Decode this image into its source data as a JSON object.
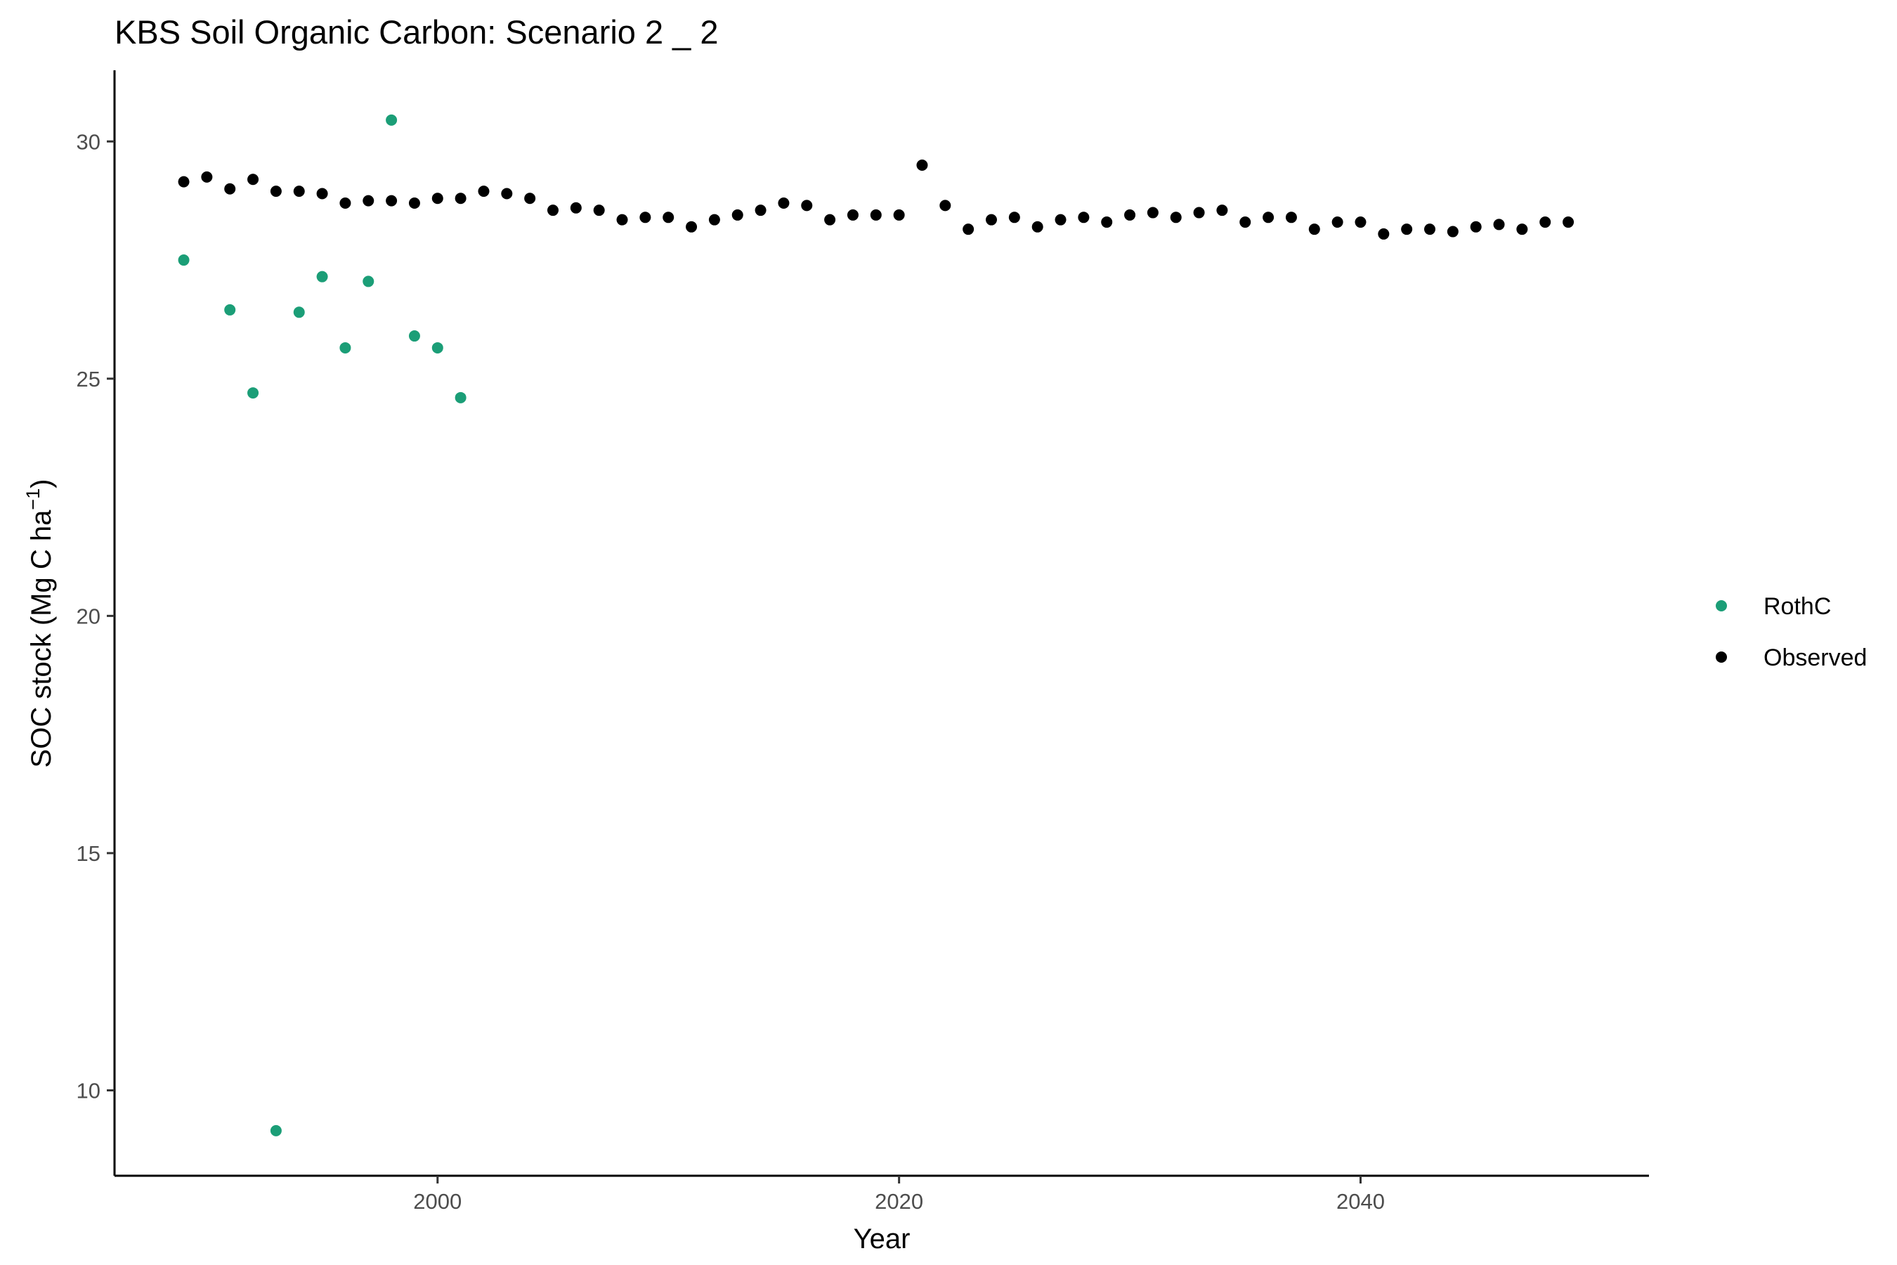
{
  "chart_data": {
    "type": "scatter",
    "title": "KBS Soil Organic Carbon: Scenario  2 _ 2",
    "xlabel": "Year",
    "ylabel": {
      "prefix": "SOC stock (Mg C ha",
      "superscript": "−1",
      "suffix": ")"
    },
    "xlim": [
      1986,
      2052.5
    ],
    "ylim": [
      8.2,
      31.5
    ],
    "x_ticks": [
      2000,
      2020,
      2040
    ],
    "y_ticks": [
      10,
      15,
      20,
      25,
      30
    ],
    "grid": false,
    "legend_position": "right",
    "series": [
      {
        "name": "RothC",
        "color": "#1b9e77",
        "points": [
          [
            1989,
            27.5
          ],
          [
            1991,
            26.45
          ],
          [
            1992,
            24.7
          ],
          [
            1993,
            9.15
          ],
          [
            1994,
            26.4
          ],
          [
            1995,
            27.15
          ],
          [
            1996,
            25.65
          ],
          [
            1997,
            27.05
          ],
          [
            1998,
            30.45
          ],
          [
            1999,
            25.9
          ],
          [
            2000,
            25.65
          ],
          [
            2001,
            24.6
          ]
        ]
      },
      {
        "name": "Observed",
        "color": "#000000",
        "points": [
          [
            1989,
            29.15
          ],
          [
            1990,
            29.25
          ],
          [
            1991,
            29.0
          ],
          [
            1992,
            29.2
          ],
          [
            1993,
            28.95
          ],
          [
            1994,
            28.95
          ],
          [
            1995,
            28.9
          ],
          [
            1996,
            28.7
          ],
          [
            1997,
            28.75
          ],
          [
            1998,
            28.75
          ],
          [
            1999,
            28.7
          ],
          [
            2000,
            28.8
          ],
          [
            2001,
            28.8
          ],
          [
            2002,
            28.95
          ],
          [
            2003,
            28.9
          ],
          [
            2004,
            28.8
          ],
          [
            2005,
            28.55
          ],
          [
            2006,
            28.6
          ],
          [
            2007,
            28.55
          ],
          [
            2008,
            28.35
          ],
          [
            2009,
            28.4
          ],
          [
            2010,
            28.4
          ],
          [
            2011,
            28.2
          ],
          [
            2012,
            28.35
          ],
          [
            2013,
            28.45
          ],
          [
            2014,
            28.55
          ],
          [
            2015,
            28.7
          ],
          [
            2016,
            28.65
          ],
          [
            2017,
            28.35
          ],
          [
            2018,
            28.45
          ],
          [
            2019,
            28.45
          ],
          [
            2020,
            28.45
          ],
          [
            2021,
            29.5
          ],
          [
            2022,
            28.65
          ],
          [
            2023,
            28.15
          ],
          [
            2024,
            28.35
          ],
          [
            2025,
            28.4
          ],
          [
            2026,
            28.2
          ],
          [
            2027,
            28.35
          ],
          [
            2028,
            28.4
          ],
          [
            2029,
            28.3
          ],
          [
            2030,
            28.45
          ],
          [
            2031,
            28.5
          ],
          [
            2032,
            28.4
          ],
          [
            2033,
            28.5
          ],
          [
            2034,
            28.55
          ],
          [
            2035,
            28.3
          ],
          [
            2036,
            28.4
          ],
          [
            2037,
            28.4
          ],
          [
            2038,
            28.15
          ],
          [
            2039,
            28.3
          ],
          [
            2040,
            28.3
          ],
          [
            2041,
            28.05
          ],
          [
            2042,
            28.15
          ],
          [
            2043,
            28.15
          ],
          [
            2044,
            28.1
          ],
          [
            2045,
            28.2
          ],
          [
            2046,
            28.25
          ],
          [
            2047,
            28.15
          ],
          [
            2048,
            28.3
          ],
          [
            2049,
            28.3
          ]
        ]
      }
    ]
  }
}
